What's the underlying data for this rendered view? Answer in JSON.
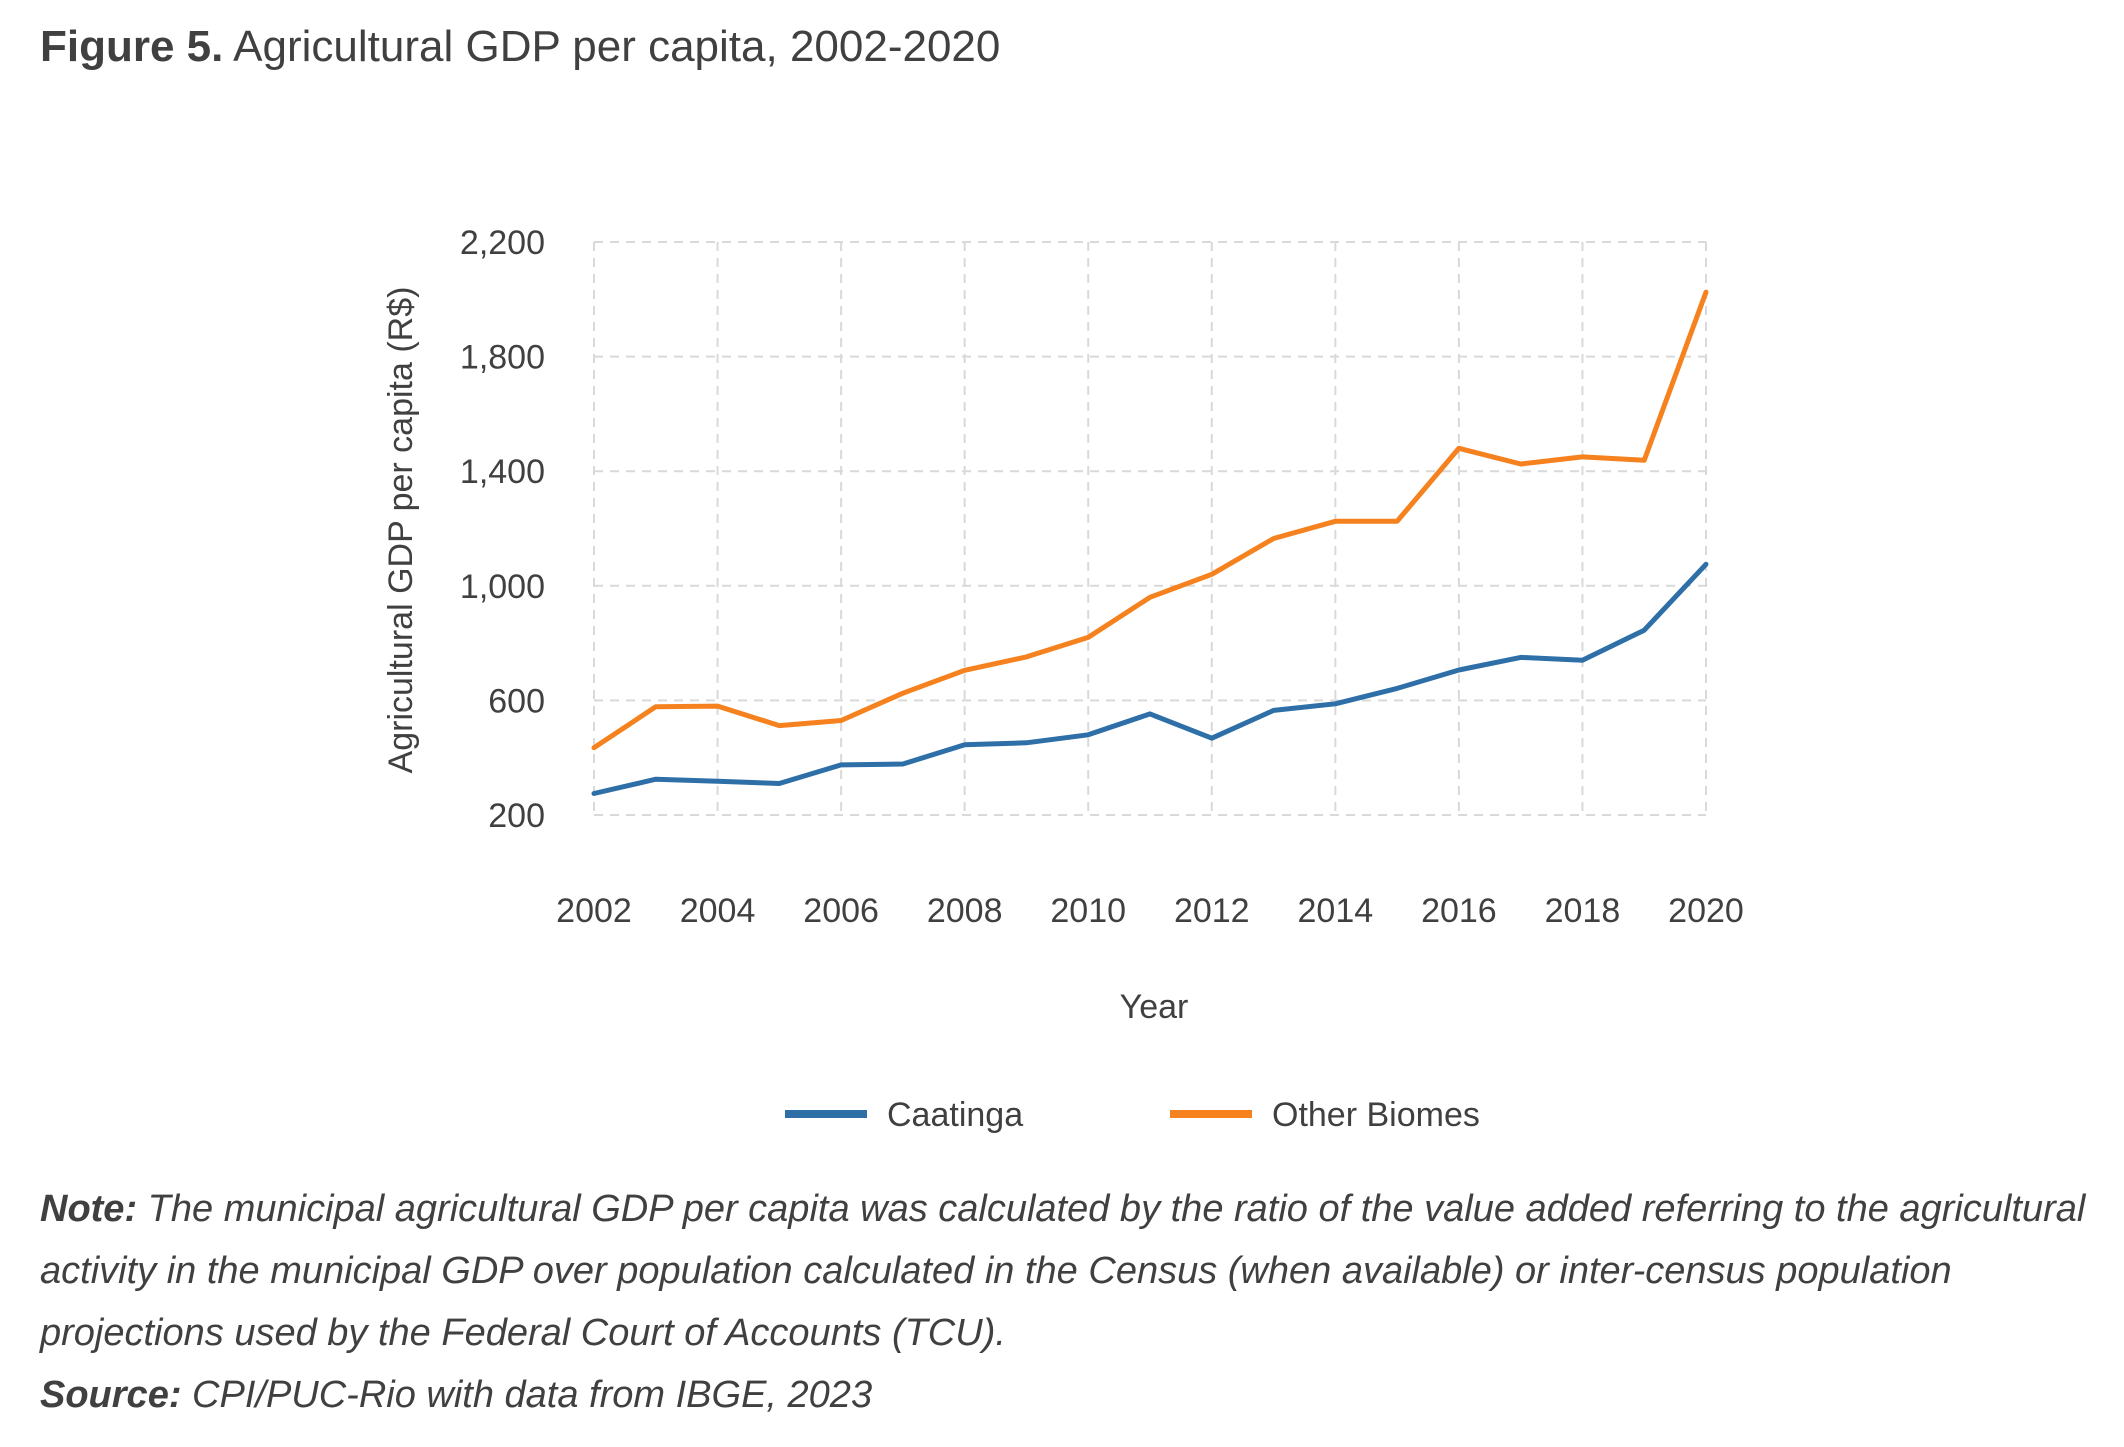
{
  "figure": {
    "label": "Figure 5.",
    "title": "Agricultural GDP per capita, 2002-2020"
  },
  "chart_data": {
    "type": "line",
    "x": [
      2002,
      2003,
      2004,
      2005,
      2006,
      2007,
      2008,
      2009,
      2010,
      2011,
      2012,
      2013,
      2014,
      2015,
      2016,
      2017,
      2018,
      2019,
      2020
    ],
    "series": [
      {
        "name": "Caatinga",
        "color": "#2E6FA8",
        "values": [
          275,
          325,
          318,
          310,
          375,
          378,
          445,
          452,
          480,
          553,
          468,
          565,
          588,
          642,
          706,
          750,
          740,
          845,
          1075
        ]
      },
      {
        "name": "Other Biomes",
        "color": "#F5821F",
        "values": [
          435,
          578,
          580,
          512,
          530,
          625,
          705,
          752,
          820,
          960,
          1040,
          1165,
          1225,
          1225,
          1480,
          1425,
          1450,
          1438,
          2025
        ]
      }
    ],
    "xticks": [
      "2002",
      "2004",
      "2006",
      "2008",
      "2010",
      "2012",
      "2014",
      "2016",
      "2018",
      "2020"
    ],
    "yticks": [
      "200",
      "600",
      "1,000",
      "1,400",
      "1,800",
      "2,200"
    ],
    "ylim": [
      200,
      2200
    ],
    "xlim": [
      2002,
      2020
    ],
    "xlabel": "Year",
    "ylabel": "Agricultural GDP per capita (R$)",
    "grid": true,
    "gridColor": "#d9d9d9",
    "legend_position": "bottom"
  },
  "note": {
    "label": "Note:",
    "text": " The municipal agricultural GDP per capita was calculated by the ratio of the value added referring to the agricultural activity in the municipal GDP over population calculated in the Census (when available) or inter-census population projections used by the Federal Court of Accounts (TCU)."
  },
  "source": {
    "label": "Source:",
    "text": " CPI/PUC-Rio with data from IBGE, 2023"
  }
}
